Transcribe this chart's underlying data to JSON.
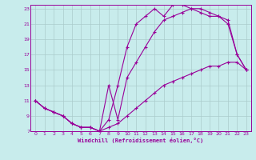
{
  "title": "",
  "xlabel": "Windchill (Refroidissement éolien,°C)",
  "bg_color": "#c8ecec",
  "line_color": "#990099",
  "grid_color": "#aacccc",
  "text_color": "#990099",
  "xlim": [
    -0.5,
    23.5
  ],
  "ylim": [
    7,
    23.5
  ],
  "xticks": [
    0,
    1,
    2,
    3,
    4,
    5,
    6,
    7,
    8,
    9,
    10,
    11,
    12,
    13,
    14,
    15,
    16,
    17,
    18,
    19,
    20,
    21,
    22,
    23
  ],
  "yticks": [
    7,
    9,
    11,
    13,
    15,
    17,
    19,
    21,
    23
  ],
  "line1_x": [
    0,
    1,
    2,
    3,
    4,
    5,
    6,
    7,
    8,
    9,
    10,
    11,
    12,
    13,
    14,
    15,
    16,
    17,
    18,
    19,
    20,
    21,
    22,
    23
  ],
  "line1_y": [
    11,
    10,
    9.5,
    9,
    8,
    7.5,
    7.5,
    7,
    7.5,
    8,
    9,
    10,
    11,
    12,
    13,
    13.5,
    14,
    14.5,
    15,
    15.5,
    15.5,
    16,
    16,
    15
  ],
  "line2_x": [
    0,
    1,
    2,
    3,
    4,
    5,
    6,
    7,
    8,
    9,
    10,
    11,
    12,
    13,
    14,
    15,
    16,
    17,
    18,
    19,
    20,
    21,
    22,
    23
  ],
  "line2_y": [
    11,
    10,
    9.5,
    9,
    8,
    7.5,
    7.5,
    7,
    13,
    8.5,
    14,
    16,
    18,
    20,
    21.5,
    22,
    22.5,
    23,
    23,
    22.5,
    22,
    21.5,
    17,
    15
  ],
  "line3_x": [
    0,
    1,
    2,
    3,
    4,
    5,
    6,
    7,
    8,
    9,
    10,
    11,
    12,
    13,
    14,
    15,
    16,
    17,
    18,
    19,
    20,
    21,
    22,
    23
  ],
  "line3_y": [
    11,
    10,
    9.5,
    9,
    8,
    7.5,
    7.5,
    7,
    8.5,
    13,
    18,
    21,
    22,
    23,
    22,
    23.5,
    23.5,
    23,
    22.5,
    22,
    22,
    21,
    17,
    15
  ]
}
